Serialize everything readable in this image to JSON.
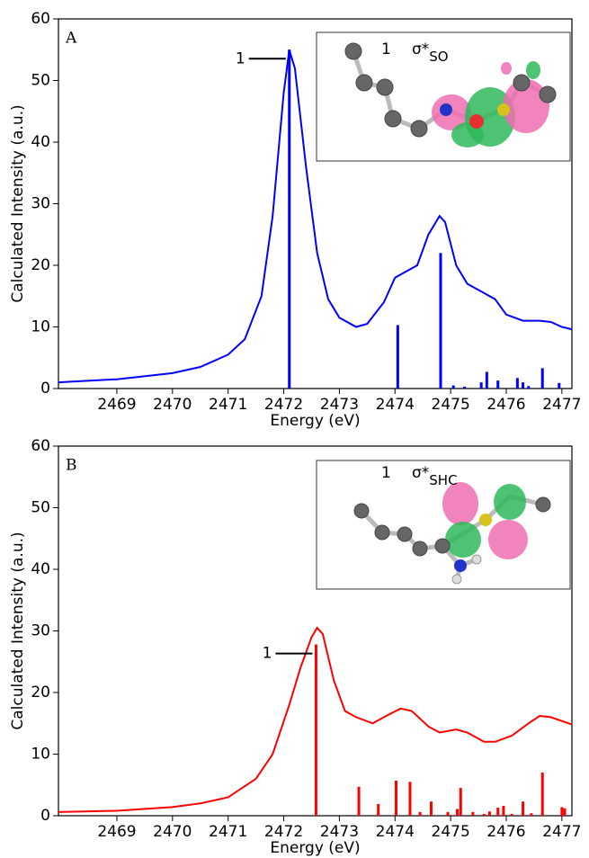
{
  "chart_data": [
    {
      "type": "line",
      "panel_label": "A",
      "xlabel": "Energy (eV)",
      "ylabel": "Calculated Intensity (a.u.)",
      "xlim": [
        2467.95,
        2477.18
      ],
      "ylim": [
        0,
        60
      ],
      "xticks": [
        2469,
        2470,
        2471,
        2472,
        2473,
        2474,
        2475,
        2476,
        2477
      ],
      "yticks": [
        0,
        10,
        20,
        30,
        40,
        50,
        60
      ],
      "line": {
        "color": "#0000ff",
        "x": [
          2467.95,
          2469,
          2470,
          2470.5,
          2471,
          2471.3,
          2471.6,
          2471.8,
          2472.0,
          2472.1,
          2472.2,
          2472.4,
          2472.6,
          2472.8,
          2473.0,
          2473.3,
          2473.5,
          2473.8,
          2474.0,
          2474.2,
          2474.4,
          2474.6,
          2474.8,
          2474.9,
          2475.1,
          2475.3,
          2475.5,
          2475.8,
          2476.0,
          2476.3,
          2476.6,
          2476.8,
          2477.0,
          2477.18
        ],
        "values": [
          1.0,
          1.5,
          2.5,
          3.5,
          5.5,
          8,
          15,
          28,
          48,
          55,
          52,
          36,
          22,
          14.5,
          11.5,
          10,
          10.5,
          14,
          18,
          19,
          20,
          25,
          28,
          27,
          20,
          17,
          16,
          14.5,
          12,
          11,
          11,
          10.8,
          10,
          9.6
        ]
      },
      "sticks": {
        "color": "#0000ff",
        "x": [
          2472.1,
          2474.05,
          2474.82,
          2475.05,
          2475.25,
          2475.55,
          2475.65,
          2475.85,
          2476.2,
          2476.3,
          2476.4,
          2476.65,
          2476.95
        ],
        "values": [
          55,
          10.3,
          22,
          0.5,
          0.3,
          1,
          2.7,
          1.3,
          1.7,
          1,
          0.4,
          3.3,
          0.9
        ]
      },
      "annotation": "1",
      "inset": {
        "label": "1",
        "symbol": "σ*",
        "subscript": "SO"
      }
    },
    {
      "type": "line",
      "panel_label": "B",
      "xlabel": "Energy (eV)",
      "ylabel": "Calculated Intensity (a.u.)",
      "xlim": [
        2467.95,
        2477.18
      ],
      "ylim": [
        0,
        60
      ],
      "xticks": [
        2469,
        2470,
        2471,
        2472,
        2473,
        2474,
        2475,
        2476,
        2477
      ],
      "yticks": [
        0,
        10,
        20,
        30,
        40,
        50,
        60
      ],
      "line": {
        "color": "#ff0000",
        "x": [
          2467.95,
          2469,
          2470,
          2470.5,
          2471,
          2471.5,
          2471.8,
          2472.1,
          2472.3,
          2472.5,
          2472.6,
          2472.7,
          2472.9,
          2473.1,
          2473.3,
          2473.6,
          2473.8,
          2474.1,
          2474.3,
          2474.6,
          2474.8,
          2475.1,
          2475.3,
          2475.6,
          2475.8,
          2476.1,
          2476.4,
          2476.6,
          2476.8,
          2477.18
        ],
        "values": [
          0.6,
          0.8,
          1.4,
          2,
          3,
          6,
          10,
          18,
          24,
          29,
          30.5,
          29.5,
          22,
          17,
          16,
          15,
          16,
          17.4,
          17,
          14.5,
          13.5,
          14,
          13.5,
          12,
          12,
          13,
          15,
          16.2,
          16,
          14.8
        ]
      },
      "sticks": {
        "color": "#ff0000",
        "x": [
          2472.58,
          2473.35,
          2473.7,
          2474.02,
          2474.27,
          2474.45,
          2474.65,
          2474.95,
          2475.12,
          2475.18,
          2475.4,
          2475.6,
          2475.7,
          2475.85,
          2475.95,
          2476.1,
          2476.3,
          2476.45,
          2476.65,
          2477.0,
          2477.05
        ],
        "values": [
          27.8,
          4.7,
          1.9,
          5.7,
          5.5,
          0.6,
          2.3,
          0.6,
          1.1,
          4.5,
          0.6,
          0.3,
          0.7,
          1.3,
          1.6,
          0.3,
          2.3,
          0.4,
          7,
          1.4,
          1.2
        ]
      },
      "annotation": "1",
      "inset": {
        "label": "1",
        "symbol": "σ*",
        "subscript": "SHC"
      }
    }
  ]
}
